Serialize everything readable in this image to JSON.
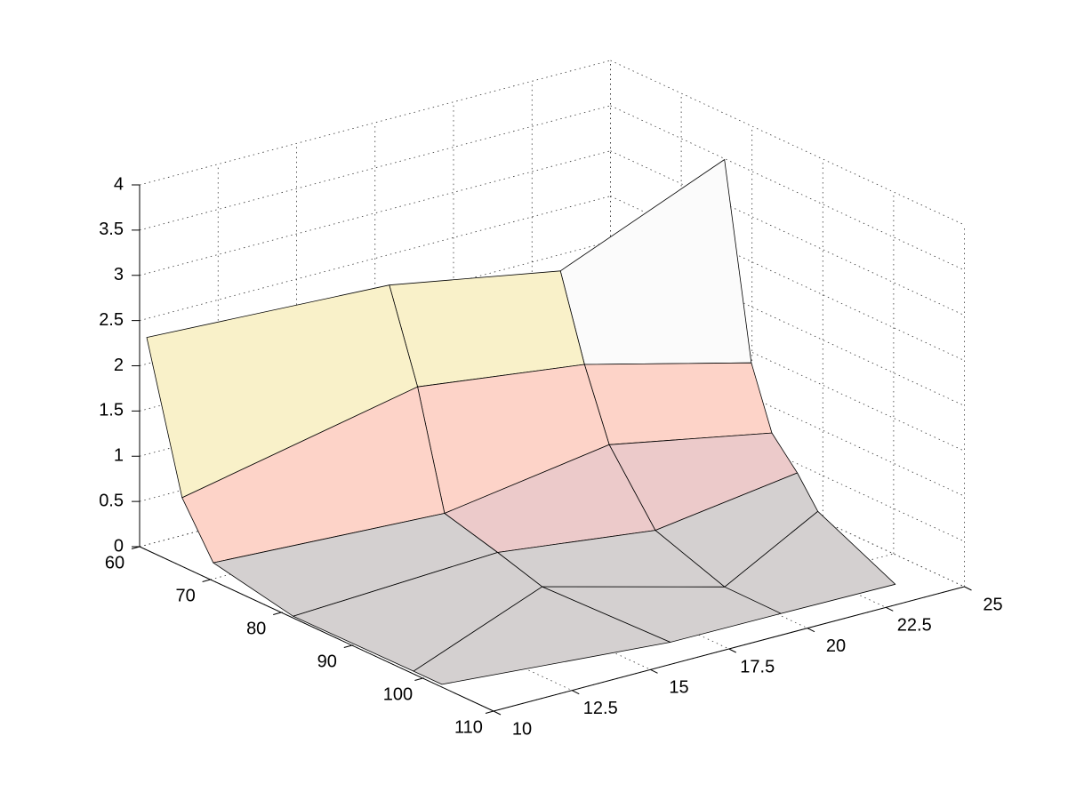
{
  "chart_data": {
    "type": "surface",
    "x": [
      [
        61,
        73.1,
        75.1,
        76.1
      ],
      [
        66,
        77.1,
        78.5,
        79.9
      ],
      [
        70.4,
        80.9,
        82,
        82.8
      ],
      [
        81.7,
        88.4,
        88.5,
        86.4
      ],
      [
        98.7,
        94.7,
        98.3,
        89.3
      ],
      [
        102.7,
        105.7,
        105.8,
        106
      ]
    ],
    "y": [
      [
        10,
        15,
        20,
        25
      ],
      [
        10,
        15,
        20,
        25
      ],
      [
        10,
        15,
        20,
        25
      ],
      [
        10,
        15,
        20,
        25
      ],
      [
        10,
        15,
        20,
        25
      ],
      [
        10,
        16.6,
        20.1,
        23.7
      ]
    ],
    "z": [
      [
        2.35,
        2.91,
        2.68,
        3.49
      ],
      [
        0.76,
        1.93,
        1.77,
        1.38
      ],
      [
        0.2,
        0.67,
        1.01,
        0.71
      ],
      [
        0.02,
        0.51,
        0.3,
        0.4
      ],
      [
        0.03,
        0.36,
        0.03,
        0.08
      ],
      [
        0.03,
        0,
        0,
        0
      ]
    ],
    "colormap": [
      "#d4d0d0",
      "#eccaca",
      "#fdd3c8",
      "#f9f1c9",
      "#fbfbfb"
    ],
    "xlim": [
      60,
      110
    ],
    "xticks": [
      60,
      70,
      80,
      90,
      100,
      110
    ],
    "ylim": [
      10,
      25
    ],
    "yticks": [
      10,
      12.5,
      15,
      17.5,
      20,
      22.5,
      25
    ],
    "zlim": [
      0,
      4
    ],
    "zticks": [
      0,
      0.5,
      1,
      1.5,
      2,
      2.5,
      3,
      3.5,
      4
    ],
    "grid": true
  }
}
